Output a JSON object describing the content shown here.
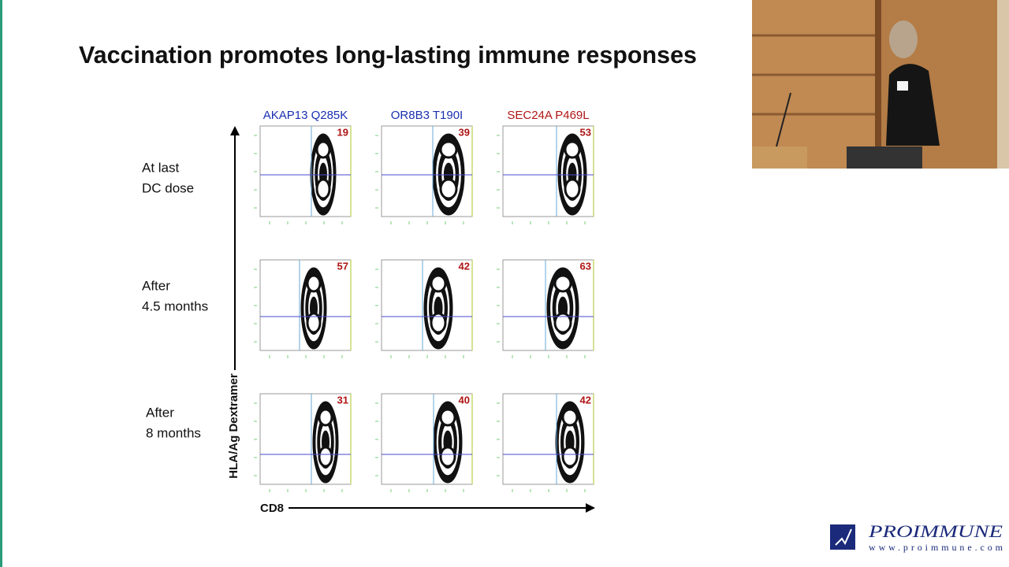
{
  "slide": {
    "title": "Vaccination promotes long-lasting immune responses",
    "columns": [
      "AKAP13 Q285K",
      "OR8B3 T190I",
      "SEC24A P469L"
    ],
    "rows": [
      {
        "label": [
          "At last",
          "DC dose"
        ],
        "values": [
          19,
          39,
          53
        ]
      },
      {
        "label": [
          "After",
          "4.5 months"
        ],
        "values": [
          57,
          42,
          63
        ]
      },
      {
        "label": [
          "After",
          "8 months"
        ],
        "values": [
          31,
          40,
          42
        ]
      }
    ],
    "y_axis_label": "HLA/Ag Dextramer",
    "x_axis_label": "CD8"
  },
  "logo": {
    "name": "PROIMMUNE",
    "url": "www.proimmune.com"
  }
}
